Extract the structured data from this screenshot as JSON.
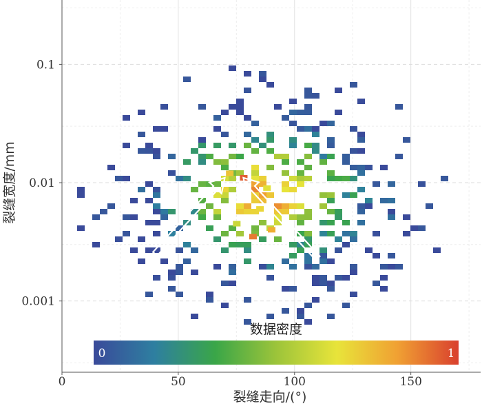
{
  "chart_data": {
    "type": "heatmap",
    "xlabel": "裂缝走向/(°)",
    "ylabel": "裂缝宽度/mm",
    "x_ticks": [
      "0",
      "50",
      "100",
      "150"
    ],
    "y_ticks": [
      "0.1",
      "0.01",
      "0.001"
    ],
    "xlim": [
      0,
      180
    ],
    "ylim": [
      0.00025,
      0.35
    ],
    "y_scale": "log",
    "grid": true,
    "colorbar": {
      "title": "数据密度",
      "min_label": "0",
      "max_label": "1",
      "colors": [
        "#3a4a9a",
        "#2e7fa0",
        "#3aa648",
        "#9cc43a",
        "#e8e43a",
        "#f0a033",
        "#d9402e"
      ]
    },
    "annotations": [
      {
        "type": "arrow",
        "from": [
          40,
          0.0025
        ],
        "to": [
          70,
          0.011
        ]
      },
      {
        "type": "arrow",
        "from": [
          110,
          0.0023
        ],
        "to": [
          78,
          0.011
        ]
      }
    ],
    "density_cells": [
      {
        "x": 20,
        "y": 0.0012,
        "v": 0.0
      },
      {
        "x": 25,
        "y": 0.0018,
        "v": 0.0
      },
      {
        "x": 30,
        "y": 0.003,
        "v": 0.05
      },
      {
        "x": 35,
        "y": 0.005,
        "v": 0.1
      },
      {
        "x": 40,
        "y": 0.007,
        "v": 0.12
      },
      {
        "x": 45,
        "y": 0.009,
        "v": 0.15
      },
      {
        "x": 50,
        "y": 0.004,
        "v": 0.2
      },
      {
        "x": 55,
        "y": 0.006,
        "v": 0.25
      },
      {
        "x": 60,
        "y": 0.008,
        "v": 0.3
      },
      {
        "x": 65,
        "y": 0.005,
        "v": 0.35
      },
      {
        "x": 70,
        "y": 0.01,
        "v": 0.45
      },
      {
        "x": 72,
        "y": 0.012,
        "v": 0.75
      },
      {
        "x": 75,
        "y": 0.0045,
        "v": 0.6
      },
      {
        "x": 78,
        "y": 0.011,
        "v": 0.95
      },
      {
        "x": 80,
        "y": 0.007,
        "v": 0.55
      },
      {
        "x": 82,
        "y": 0.0035,
        "v": 0.9
      },
      {
        "x": 85,
        "y": 0.006,
        "v": 0.7
      },
      {
        "x": 88,
        "y": 0.009,
        "v": 0.65
      },
      {
        "x": 90,
        "y": 0.004,
        "v": 0.8
      },
      {
        "x": 95,
        "y": 0.005,
        "v": 0.5
      },
      {
        "x": 100,
        "y": 0.007,
        "v": 0.4
      },
      {
        "x": 105,
        "y": 0.003,
        "v": 0.3
      },
      {
        "x": 110,
        "y": 0.006,
        "v": 0.2
      },
      {
        "x": 115,
        "y": 0.0025,
        "v": 0.1
      },
      {
        "x": 120,
        "y": 0.004,
        "v": 0.08
      },
      {
        "x": 125,
        "y": 0.002,
        "v": 0.05
      },
      {
        "x": 130,
        "y": 0.008,
        "v": 0.0
      },
      {
        "x": 140,
        "y": 0.006,
        "v": 0.0
      },
      {
        "x": 150,
        "y": 0.004,
        "v": 0.0
      },
      {
        "x": 160,
        "y": 0.003,
        "v": 0.0
      }
    ]
  }
}
